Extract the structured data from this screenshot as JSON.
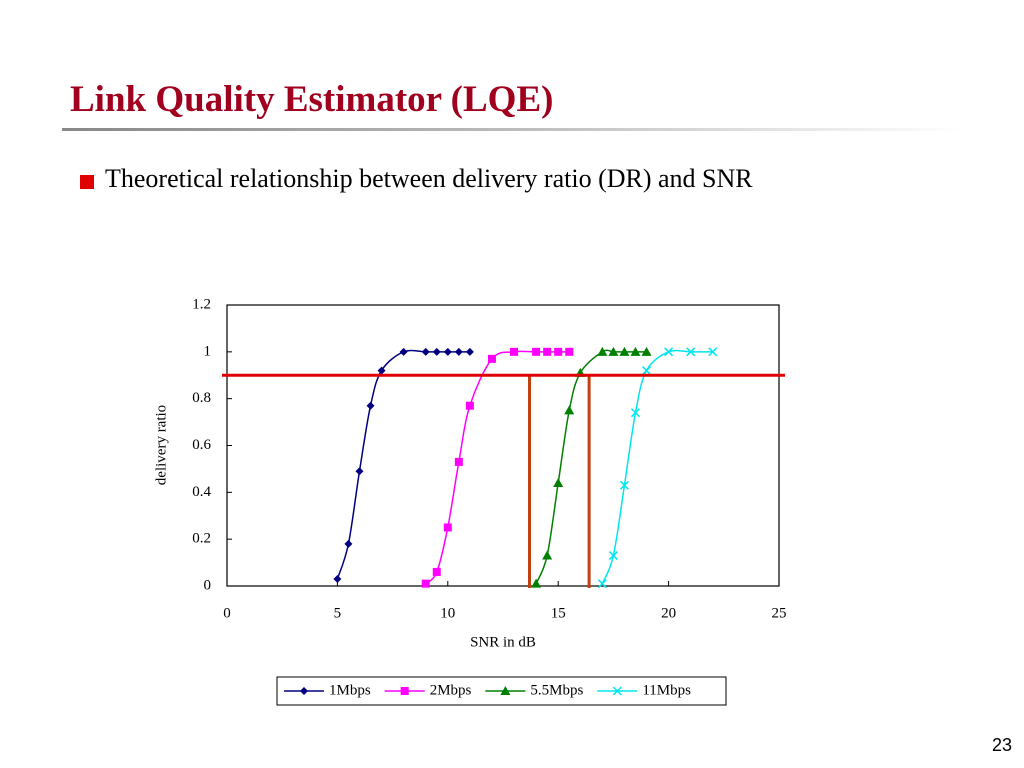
{
  "slide": {
    "title": "Link Quality Estimator (LQE)",
    "bullet": "Theoretical relationship between delivery ratio (DR) and SNR",
    "page_number": "23"
  },
  "chart_data": {
    "type": "line",
    "x_label": "SNR in dB",
    "y_label": "delivery ratio",
    "xlim": [
      0,
      25
    ],
    "xticks": [
      0,
      5,
      10,
      15,
      20,
      25
    ],
    "ylim": [
      0,
      1.2
    ],
    "yticks": [
      0,
      0.2,
      0.4,
      0.6,
      0.8,
      1,
      1.2
    ],
    "grid": false,
    "legend": "bottom",
    "hline": {
      "value": 0.9,
      "color": "#e00000"
    },
    "vlines": {
      "values": [
        13.7,
        16.4
      ],
      "color": "#c0400f"
    },
    "series": [
      {
        "name": "1Mbps",
        "color": "#000080",
        "marker": "diamond",
        "x": [
          5,
          5.5,
          6,
          6.5,
          7,
          8,
          9,
          9.5,
          10,
          10.5,
          11
        ],
        "values": [
          0.03,
          0.18,
          0.49,
          0.77,
          0.92,
          1,
          1,
          1,
          1,
          1,
          1
        ]
      },
      {
        "name": "2Mbps",
        "color": "#ff00ff",
        "marker": "square",
        "x": [
          9,
          9.5,
          10,
          10.5,
          11,
          12,
          13,
          14,
          14.5,
          15,
          15.5
        ],
        "values": [
          0.01,
          0.06,
          0.25,
          0.53,
          0.77,
          0.97,
          1,
          1,
          1,
          1,
          1
        ]
      },
      {
        "name": "5.5Mbps",
        "color": "#008000",
        "marker": "triangle",
        "x": [
          14,
          14.5,
          15,
          15.5,
          16,
          17,
          17.5,
          18,
          18.5,
          19
        ],
        "values": [
          0.01,
          0.13,
          0.44,
          0.75,
          0.91,
          1,
          1,
          1,
          1,
          1
        ]
      },
      {
        "name": "11Mbps",
        "color": "#00e5ee",
        "marker": "x",
        "x": [
          17,
          17.5,
          18,
          18.5,
          19,
          20,
          21,
          22
        ],
        "values": [
          0.01,
          0.13,
          0.43,
          0.74,
          0.92,
          1,
          1,
          1
        ]
      }
    ]
  }
}
